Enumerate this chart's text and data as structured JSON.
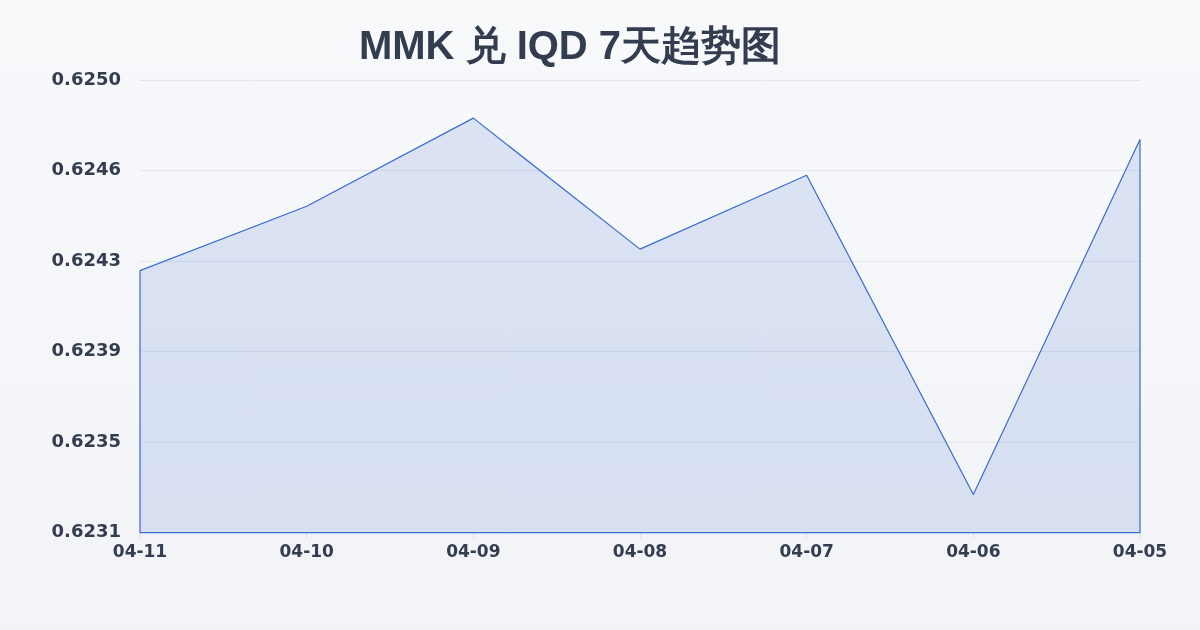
{
  "chart_data": {
    "type": "area",
    "title": "MMK 兑 IQD 7天趋势图",
    "categories": [
      "04-11",
      "04-10",
      "04-09",
      "04-08",
      "04-07",
      "04-06",
      "04-05"
    ],
    "series": [
      {
        "color": "#3a6bd0",
        "values": [
          0.62422,
          0.62449,
          0.62486,
          0.62431,
          0.62462,
          0.62328,
          0.62477
        ]
      }
    ],
    "ylim": [
      0.62312,
      0.62502
    ],
    "yticks": [
      {
        "value": 0.62312,
        "label": "0.6231"
      },
      {
        "value": 0.6235,
        "label": "0.6235"
      },
      {
        "value": 0.62388,
        "label": "0.6239"
      },
      {
        "value": 0.62426,
        "label": "0.6243"
      },
      {
        "value": 0.62464,
        "label": "0.6246"
      },
      {
        "value": 0.62502,
        "label": "0.6250"
      }
    ],
    "grid": "y",
    "marker": "none"
  }
}
